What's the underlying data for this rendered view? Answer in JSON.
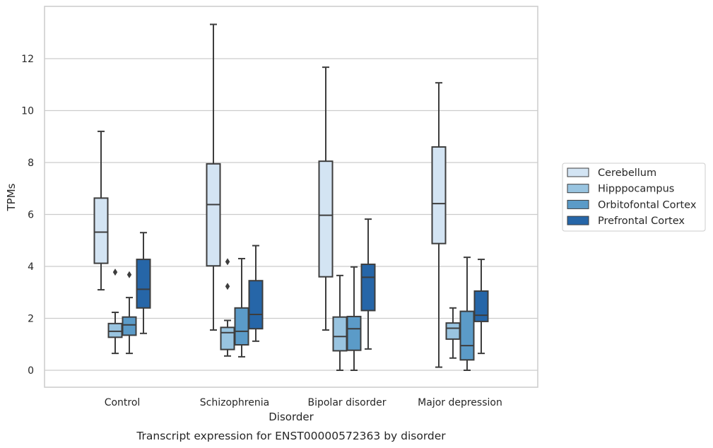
{
  "caption": "Transcript expression for ENST00000572363 by disorder",
  "chart_data": {
    "type": "box",
    "xlabel": "Disorder",
    "ylabel": "TPMs",
    "ylim": [
      -0.65,
      14.0
    ],
    "yticks": [
      0,
      2,
      4,
      6,
      8,
      10,
      12
    ],
    "grid": "horizontal",
    "legend_position": "right",
    "categories": [
      "Control",
      "Schizophrenia",
      "Bipolar disorder",
      "Major depression"
    ],
    "series": [
      {
        "name": "Cerebellum",
        "color": "#d3e4f3",
        "boxes": [
          {
            "whislo": 3.1,
            "q1": 4.12,
            "med": 5.32,
            "q3": 6.63,
            "whishi": 9.2,
            "fliers": []
          },
          {
            "whislo": 1.55,
            "q1": 4.02,
            "med": 6.38,
            "q3": 7.95,
            "whishi": 13.32,
            "fliers": []
          },
          {
            "whislo": 1.55,
            "q1": 3.6,
            "med": 5.97,
            "q3": 8.05,
            "whishi": 11.67,
            "fliers": []
          },
          {
            "whislo": 0.12,
            "q1": 4.88,
            "med": 6.42,
            "q3": 8.6,
            "whishi": 11.07,
            "fliers": []
          }
        ]
      },
      {
        "name": "Hipppocampus",
        "color": "#99c4e0",
        "boxes": [
          {
            "whislo": 0.65,
            "q1": 1.27,
            "med": 1.5,
            "q3": 1.8,
            "whishi": 2.23,
            "fliers": [
              3.78
            ]
          },
          {
            "whislo": 0.55,
            "q1": 0.8,
            "med": 1.45,
            "q3": 1.65,
            "whishi": 1.92,
            "fliers": [
              4.18,
              3.23
            ]
          },
          {
            "whislo": 0.0,
            "q1": 0.75,
            "med": 1.3,
            "q3": 2.05,
            "whishi": 3.65,
            "fliers": []
          },
          {
            "whislo": 0.47,
            "q1": 1.2,
            "med": 1.62,
            "q3": 1.82,
            "whishi": 2.4,
            "fliers": []
          }
        ]
      },
      {
        "name": "Orbitofontal Cortex",
        "color": "#5b9bc8",
        "boxes": [
          {
            "whislo": 0.65,
            "q1": 1.35,
            "med": 1.75,
            "q3": 2.05,
            "whishi": 2.8,
            "fliers": [
              3.68
            ]
          },
          {
            "whislo": 0.52,
            "q1": 0.98,
            "med": 1.5,
            "q3": 2.4,
            "whishi": 4.3,
            "fliers": []
          },
          {
            "whislo": 0.0,
            "q1": 0.77,
            "med": 1.6,
            "q3": 2.07,
            "whishi": 3.98,
            "fliers": []
          },
          {
            "whislo": 0.0,
            "q1": 0.4,
            "med": 0.95,
            "q3": 2.27,
            "whishi": 4.35,
            "fliers": []
          }
        ]
      },
      {
        "name": "Prefrontal Cortex",
        "color": "#2666a8",
        "boxes": [
          {
            "whislo": 1.42,
            "q1": 2.4,
            "med": 3.12,
            "q3": 4.27,
            "whishi": 5.3,
            "fliers": []
          },
          {
            "whislo": 1.12,
            "q1": 1.6,
            "med": 2.15,
            "q3": 3.45,
            "whishi": 4.8,
            "fliers": []
          },
          {
            "whislo": 0.82,
            "q1": 2.3,
            "med": 3.58,
            "q3": 4.08,
            "whishi": 5.82,
            "fliers": []
          },
          {
            "whislo": 0.65,
            "q1": 1.88,
            "med": 2.12,
            "q3": 3.05,
            "whishi": 4.27,
            "fliers": []
          }
        ]
      }
    ]
  }
}
